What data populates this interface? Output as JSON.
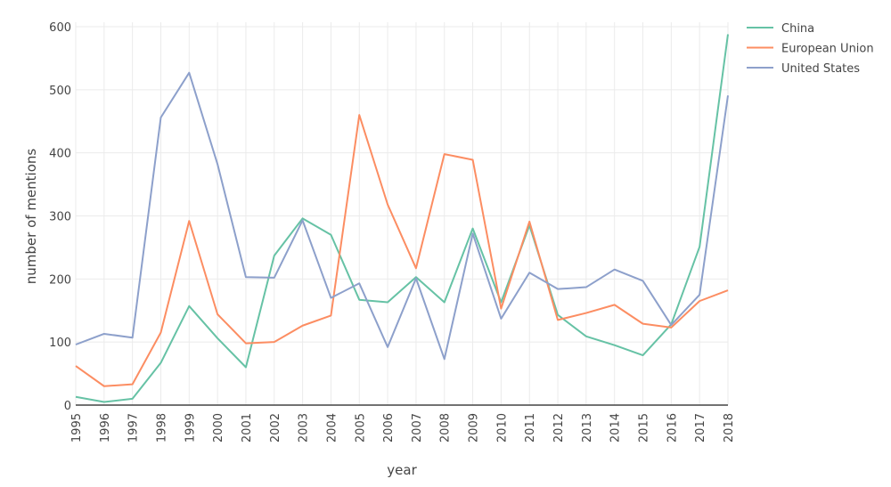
{
  "chart_data": {
    "type": "line",
    "xlabel": "year",
    "ylabel": "number of mentions",
    "x": [
      1995,
      1996,
      1997,
      1998,
      1999,
      2000,
      2001,
      2002,
      2003,
      2004,
      2005,
      2006,
      2007,
      2008,
      2009,
      2010,
      2011,
      2012,
      2013,
      2014,
      2015,
      2016,
      2017,
      2018
    ],
    "ylim": [
      0,
      600
    ],
    "yticks": [
      0,
      100,
      200,
      300,
      400,
      500,
      600
    ],
    "grid": true,
    "legend_position": "top-right",
    "series": [
      {
        "name": "China",
        "color": "#66c2a5",
        "values": [
          13,
          5,
          10,
          67,
          157,
          106,
          60,
          237,
          296,
          270,
          167,
          163,
          203,
          163,
          280,
          163,
          285,
          143,
          109,
          95,
          79,
          128,
          251,
          588
        ]
      },
      {
        "name": "European Union",
        "color": "#fc8d62",
        "values": [
          62,
          30,
          33,
          115,
          292,
          144,
          98,
          100,
          126,
          142,
          460,
          318,
          217,
          398,
          389,
          153,
          291,
          135,
          146,
          159,
          129,
          123,
          165,
          182
        ]
      },
      {
        "name": "United States",
        "color": "#8da0cb",
        "values": [
          96,
          113,
          107,
          456,
          527,
          382,
          203,
          202,
          293,
          170,
          193,
          92,
          201,
          73,
          272,
          137,
          210,
          184,
          187,
          215,
          197,
          127,
          175,
          491
        ]
      }
    ]
  }
}
